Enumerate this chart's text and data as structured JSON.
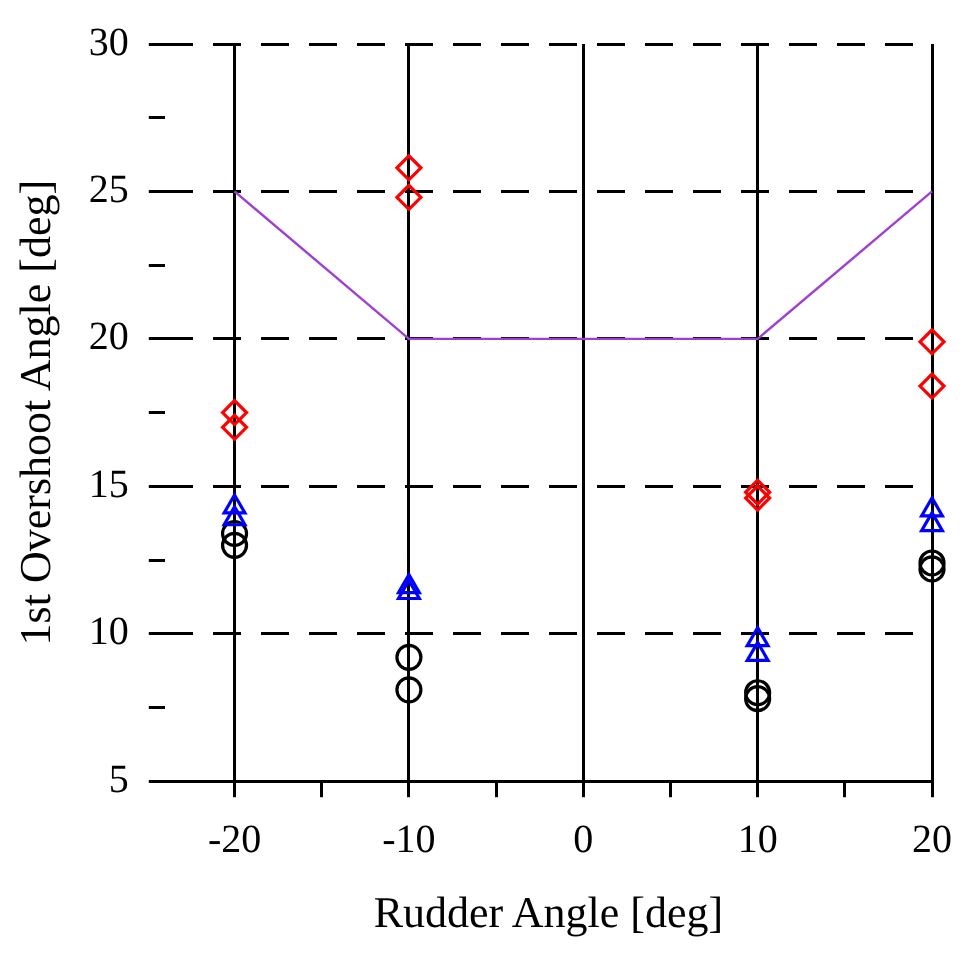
{
  "chart_data": {
    "type": "scatter",
    "xlabel": "Rudder Angle [deg]",
    "ylabel": "1st Overshoot Angle [deg]",
    "xlim": [
      -24,
      20
    ],
    "ylim": [
      5,
      30
    ],
    "xticks": [
      -20,
      {
        "value": -15,
        "label": null
      },
      -10,
      {
        "value": -5,
        "label": null
      },
      0,
      {
        "value": 5,
        "label": null
      },
      10,
      {
        "value": 15,
        "label": null
      },
      20
    ],
    "yticks": [
      5,
      {
        "value": 7.5,
        "label": null
      },
      10,
      {
        "value": 12.5,
        "label": null
      },
      15,
      {
        "value": 17.5,
        "label": null
      },
      20,
      {
        "value": 22.5,
        "label": null
      },
      25,
      {
        "value": 27.5,
        "label": null
      },
      30
    ],
    "grid": true,
    "legend": false,
    "series": [
      {
        "type": "line",
        "color": "#a040d0",
        "marker": "none",
        "line_style": "solid",
        "x": [
          -20,
          -10,
          10,
          20
        ],
        "values": [
          25,
          20,
          20,
          25
        ]
      },
      {
        "type": "scatter",
        "color": "#ff0000",
        "marker": "diamond",
        "x": [
          -20,
          -20,
          -10,
          -10,
          10,
          10,
          20,
          20
        ],
        "values": [
          17.5,
          17.0,
          25.8,
          24.8,
          14.8,
          14.6,
          19.9,
          18.4
        ]
      },
      {
        "type": "scatter",
        "color": "#0000ff",
        "marker": "triangle",
        "x": [
          -20,
          -20,
          -10,
          -10,
          10,
          10,
          20,
          20
        ],
        "values": [
          14.3,
          13.9,
          11.6,
          11.4,
          9.8,
          9.3,
          14.2,
          13.7
        ]
      },
      {
        "type": "scatter",
        "color": "#000000",
        "marker": "circle",
        "x": [
          -20,
          -20,
          -10,
          -10,
          10,
          10,
          20,
          20
        ],
        "values": [
          13.4,
          13.0,
          9.2,
          8.1,
          8.0,
          7.8,
          12.4,
          12.2
        ]
      }
    ]
  }
}
